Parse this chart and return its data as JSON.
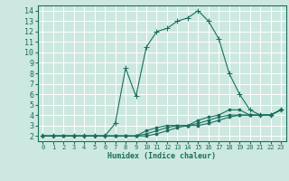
{
  "xlabel": "Humidex (Indice chaleur)",
  "bg_color": "#cde8e0",
  "grid_color": "#b0d4cc",
  "line_color": "#1a6e5e",
  "xlim": [
    -0.5,
    23.5
  ],
  "ylim": [
    1.5,
    14.5
  ],
  "xticks": [
    0,
    1,
    2,
    3,
    4,
    5,
    6,
    7,
    8,
    9,
    10,
    11,
    12,
    13,
    14,
    15,
    16,
    17,
    18,
    19,
    20,
    21,
    22,
    23
  ],
  "yticks": [
    2,
    3,
    4,
    5,
    6,
    7,
    8,
    9,
    10,
    11,
    12,
    13,
    14
  ],
  "series": [
    {
      "x": [
        0,
        1,
        2,
        3,
        4,
        5,
        6,
        7,
        8,
        9,
        10,
        11,
        12,
        13,
        14,
        15,
        16,
        17,
        18,
        19,
        20,
        21,
        22,
        23
      ],
      "y": [
        2,
        2,
        2,
        2,
        2,
        2,
        2,
        2,
        2,
        2,
        2.5,
        2.8,
        3,
        3,
        3,
        3.5,
        3.8,
        4,
        4.5,
        4.5,
        4,
        4,
        4,
        4.5
      ],
      "marker": "o",
      "ms": 2.0
    },
    {
      "x": [
        0,
        1,
        2,
        3,
        4,
        5,
        6,
        7,
        8,
        9,
        10,
        11,
        12,
        13,
        14,
        15,
        16,
        17,
        18,
        19,
        20,
        21,
        22,
        23
      ],
      "y": [
        2,
        2,
        2,
        2,
        2,
        2,
        2,
        2,
        2,
        2,
        2.2,
        2.5,
        2.8,
        3,
        3,
        3.2,
        3.5,
        3.8,
        4,
        4,
        4,
        4,
        4,
        4.5
      ],
      "marker": "o",
      "ms": 2.0
    },
    {
      "x": [
        0,
        1,
        2,
        3,
        4,
        5,
        6,
        7,
        8,
        9,
        10,
        11,
        12,
        13,
        14,
        15,
        16,
        17,
        18,
        19,
        20,
        21,
        22,
        23
      ],
      "y": [
        2,
        2,
        2,
        2,
        2,
        2,
        2,
        2,
        2,
        2,
        2,
        2.2,
        2.5,
        2.8,
        3,
        3,
        3.2,
        3.5,
        3.8,
        4,
        4,
        4,
        4,
        4.5
      ],
      "marker": "o",
      "ms": 2.0
    },
    {
      "x": [
        0,
        1,
        3,
        4,
        5,
        6,
        7,
        8,
        9,
        10,
        11,
        12,
        13,
        14,
        15,
        16,
        17,
        18,
        19,
        20,
        21,
        22,
        23
      ],
      "y": [
        2,
        2,
        2,
        2,
        2,
        2,
        3.2,
        8.5,
        5.8,
        10.5,
        12,
        12.3,
        13,
        13.3,
        14,
        13,
        11.3,
        8,
        6,
        4.5,
        4,
        4,
        4.5
      ],
      "marker": "+",
      "ms": 4.0
    }
  ]
}
